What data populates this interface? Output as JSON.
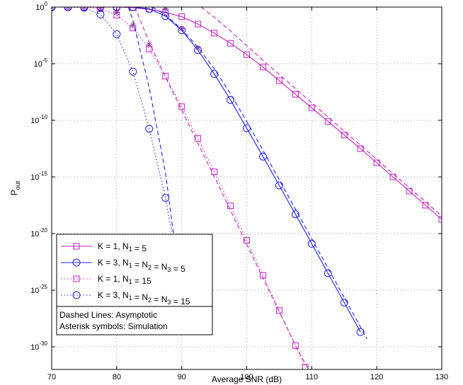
{
  "chart_data": {
    "type": "line",
    "xlabel": "Average SNR (dB)",
    "ylabel": "P",
    "ylabel_sub": "out",
    "xlim": [
      70,
      130
    ],
    "ylim_exp": [
      -32,
      0
    ],
    "yscale": "log",
    "grid": true,
    "x_ticks": [
      "70",
      "80",
      "90",
      "100",
      "110",
      "120",
      "130"
    ],
    "y_ticks": [
      {
        "base": "10",
        "exp": "0"
      },
      {
        "base": "10",
        "exp": "-5"
      },
      {
        "base": "10",
        "exp": "-10"
      },
      {
        "base": "10",
        "exp": "-15"
      },
      {
        "base": "10",
        "exp": "-20"
      },
      {
        "base": "10",
        "exp": "-25"
      },
      {
        "base": "10",
        "exp": "-30"
      }
    ],
    "series": [
      {
        "name": "K = 1, N1 = 5",
        "color": "#c020c0",
        "marker": "square",
        "linestyle": "solid",
        "x": [
          70,
          72.5,
          75,
          77.5,
          80,
          82.5,
          85,
          87.5,
          90,
          92.5,
          95,
          97.5,
          100,
          102.5,
          105,
          107.5,
          110,
          112.5,
          115,
          117.5,
          120,
          122.5,
          125,
          127.5,
          130
        ],
        "log10_y": [
          0,
          0,
          0,
          0,
          0,
          -0.05,
          -0.2,
          -0.45,
          -0.85,
          -1.5,
          -2.3,
          -3.2,
          -4.2,
          -5.3,
          -6.5,
          -7.7,
          -8.9,
          -10.1,
          -11.3,
          -12.5,
          -13.75,
          -15.0,
          -16.25,
          -17.5,
          -18.75
        ]
      },
      {
        "name": "K = 1, N1 = 5 (asymptotic)",
        "color": "#c020c0",
        "marker": "none",
        "linestyle": "dashed",
        "x": [
          93,
          95,
          97.5,
          100,
          102.5,
          105,
          107.5,
          110,
          112.5,
          115,
          117.5,
          120,
          122.5,
          125,
          127.5,
          130
        ],
        "log10_y": [
          0,
          -0.9,
          -2.1,
          -3.4,
          -4.7,
          -5.95,
          -7.2,
          -8.45,
          -9.7,
          -10.95,
          -12.2,
          -13.45,
          -14.7,
          -15.95,
          -17.2,
          -18.45
        ]
      },
      {
        "name": "K = 3, N1 = N2 = N3 = 5",
        "color": "#2020e0",
        "marker": "circle",
        "linestyle": "solid",
        "x": [
          70,
          72.5,
          75,
          77.5,
          80,
          82.5,
          85,
          87.5,
          90,
          92.5,
          95,
          97.5,
          100,
          102.5,
          105,
          107.5,
          110,
          112.5,
          115,
          117.5
        ],
        "log10_y": [
          0,
          0,
          0,
          0,
          0,
          0,
          -0.15,
          -0.8,
          -2.05,
          -3.8,
          -5.9,
          -8.2,
          -10.7,
          -13.2,
          -15.75,
          -18.3,
          -20.9,
          -23.5,
          -26.1,
          -28.7
        ]
      },
      {
        "name": "K = 3, N1 = N2 = N3 = 5 (asymptotic)",
        "color": "#2020e0",
        "marker": "none",
        "linestyle": "dashed",
        "x": [
          85.5,
          87.5,
          90,
          92.5,
          95,
          97.5,
          100,
          102.5,
          105,
          107.5,
          110,
          112.5,
          115,
          117.5,
          118.5
        ],
        "log10_y": [
          0,
          -0.7,
          -1.95,
          -3.55,
          -5.45,
          -7.65,
          -10.1,
          -12.65,
          -15.25,
          -17.85,
          -20.45,
          -23.05,
          -25.65,
          -28.25,
          -29.3
        ]
      },
      {
        "name": "K = 1, N1 = 15",
        "color": "#c020c0",
        "marker": "square",
        "linestyle": "dotted",
        "x": [
          70,
          72.5,
          75,
          77.5,
          80,
          82.5,
          85,
          87.5,
          90,
          92.5,
          95,
          97.5,
          100,
          102.5,
          105,
          107.5,
          109
        ],
        "log10_y": [
          0,
          0,
          0,
          -0.15,
          -0.7,
          -1.85,
          -3.7,
          -6.1,
          -8.8,
          -11.6,
          -14.55,
          -17.55,
          -20.6,
          -23.7,
          -26.8,
          -29.9,
          -31.8
        ]
      },
      {
        "name": "K = 1, N1 = 15 (asymptotic)",
        "color": "#c020c0",
        "marker": "none",
        "linestyle": "dashed",
        "x": [
          82.8,
          85,
          87.5,
          90,
          92.5,
          95,
          97.5,
          100,
          102.5,
          105,
          107.5,
          109.5
        ],
        "log10_y": [
          0,
          -3.1,
          -6.2,
          -9.1,
          -12.05,
          -14.95,
          -17.95,
          -20.95,
          -23.95,
          -26.9,
          -29.9,
          -32
        ]
      },
      {
        "name": "K = 3, N1 = N2 = N3 = 15",
        "color": "#2020e0",
        "marker": "circle",
        "linestyle": "dotted",
        "x": [
          70,
          72.5,
          75,
          77.5,
          80,
          82.5,
          85,
          87.5,
          89.3
        ],
        "log10_y": [
          0,
          0,
          -0.05,
          -0.65,
          -2.4,
          -5.7,
          -10.75,
          -16.85,
          -22.5
        ]
      },
      {
        "name": "K = 3, N1 = N2 = N3 = 15 (asymptotic)",
        "color": "#2020e0",
        "marker": "none",
        "linestyle": "dashed",
        "x": [
          81.8,
          82.5,
          85,
          87.5,
          89.3
        ],
        "log10_y": [
          0,
          -1.2,
          -7.1,
          -14.6,
          -22.5
        ]
      },
      {
        "name": "Simulation",
        "color": "#8040a0",
        "marker": "asterisk",
        "linestyle": "none",
        "x": [
          70,
          72.5,
          75,
          77.5,
          80,
          82.5,
          85,
          87.5,
          90,
          92.5
        ],
        "log10_y": [
          0,
          0,
          0,
          -0.05,
          -0.5,
          -1.6,
          -3.3,
          -0.15,
          -1.9,
          -3.6
        ]
      }
    ],
    "legend": {
      "placement": "bottom-left",
      "entries": [
        {
          "prefix": "K = 1, N",
          "sub1": "1",
          "text1": " = 5",
          "color": "#c020c0",
          "marker": "square",
          "linestyle": "solid"
        },
        {
          "prefix": "K = 3,  N",
          "sub1": "1",
          "mid1": " = N",
          "sub2": "2",
          "mid2": " = N",
          "sub3": "3",
          "text1": " = 5",
          "color": "#2020e0",
          "marker": "circle",
          "linestyle": "solid"
        },
        {
          "prefix": "K = 1, N",
          "sub1": "1",
          "text1": " = 15",
          "color": "#c020c0",
          "marker": "square",
          "linestyle": "dotted"
        },
        {
          "prefix": "K = 3,  N",
          "sub1": "1",
          "mid1": " = N",
          "sub2": "2",
          "mid2": " = N",
          "sub3": "3",
          "text1": " = 15",
          "color": "#2020e0",
          "marker": "circle",
          "linestyle": "dotted"
        }
      ],
      "notes": [
        "Dashed Lines: Asymptotic",
        "Asterisk symbols: Simulation"
      ]
    }
  }
}
